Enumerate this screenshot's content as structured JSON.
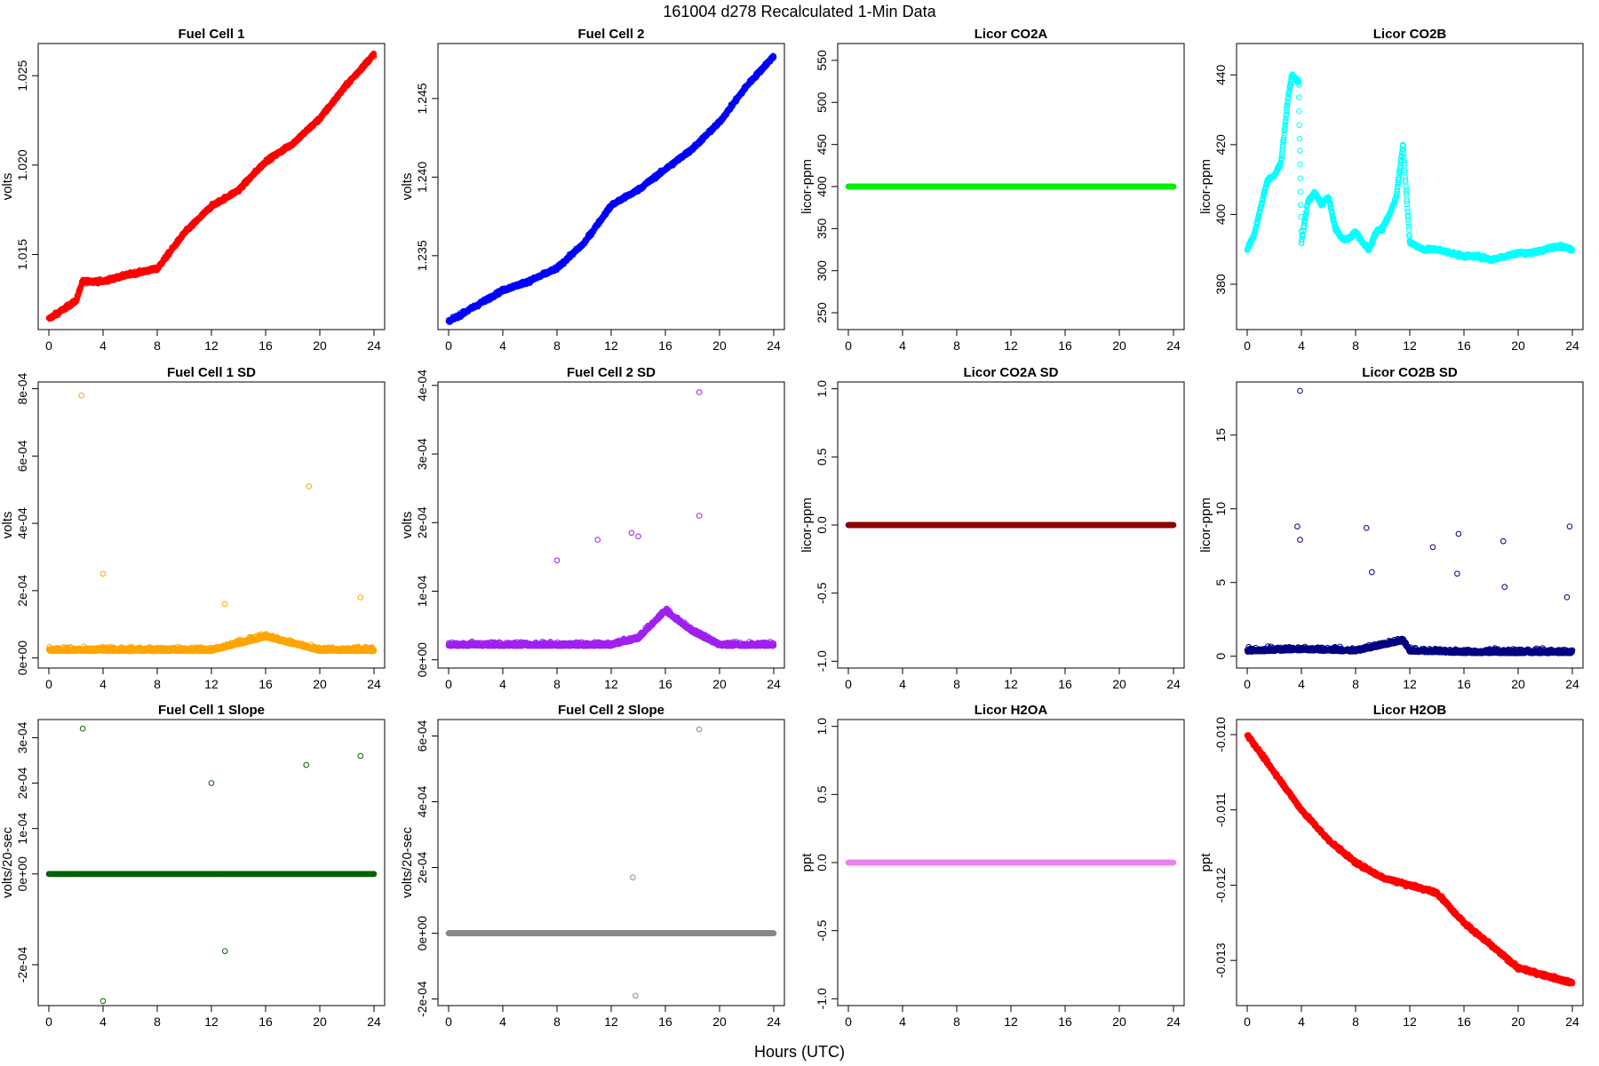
{
  "figure": {
    "title": "161004   d278   Recalculated 1-Min Data",
    "xlabel": "Hours (UTC)"
  },
  "chart_data": [
    {
      "type": "scatter",
      "title": "Fuel Cell 1",
      "ylabel": "volts",
      "color": "#ff0000",
      "xlim": [
        0,
        24
      ],
      "ylim": [
        1.0108,
        1.0268
      ],
      "xticks": [
        0,
        4,
        8,
        12,
        16,
        20,
        24
      ],
      "yticks": [
        1.015,
        1.02,
        1.025
      ],
      "ytick_labels": [
        "1.015",
        "1.020",
        "1.025"
      ],
      "series": [
        {
          "x": [
            0,
            2,
            2.5,
            4,
            6,
            8,
            10,
            12,
            14,
            16,
            18,
            20,
            22,
            24
          ],
          "y": [
            1.0114,
            1.0124,
            1.0135,
            1.0135,
            1.0139,
            1.0142,
            1.0162,
            1.0177,
            1.0186,
            1.0202,
            1.0212,
            1.0226,
            1.0245,
            1.0262
          ]
        }
      ]
    },
    {
      "type": "scatter",
      "title": "Fuel Cell 2",
      "ylabel": "volts",
      "color": "#0000ff",
      "xlim": [
        0,
        24
      ],
      "ylim": [
        1.2303,
        1.2485
      ],
      "xticks": [
        0,
        4,
        8,
        12,
        16,
        20,
        24
      ],
      "yticks": [
        1.235,
        1.24,
        1.245
      ],
      "ytick_labels": [
        "1.235",
        "1.240",
        "1.245"
      ],
      "series": [
        {
          "x": [
            0,
            2,
            4,
            6,
            8,
            10,
            12,
            14,
            16,
            18,
            20,
            22,
            24
          ],
          "y": [
            1.2308,
            1.2318,
            1.2328,
            1.2334,
            1.2342,
            1.2358,
            1.2382,
            1.2392,
            1.2405,
            1.2418,
            1.2435,
            1.2458,
            1.2477
          ]
        }
      ]
    },
    {
      "type": "scatter",
      "title": "Licor CO2A",
      "ylabel": "licor-ppm",
      "color": "#00ee00",
      "xlim": [
        0,
        24
      ],
      "ylim": [
        230,
        570
      ],
      "xticks": [
        0,
        4,
        8,
        12,
        16,
        20,
        24
      ],
      "yticks": [
        250,
        300,
        350,
        400,
        450,
        500,
        550
      ],
      "ytick_labels": [
        "250",
        "300",
        "350",
        "400",
        "450",
        "500",
        "550"
      ],
      "series": [
        {
          "x": [
            0,
            24
          ],
          "y": [
            400,
            400
          ]
        }
      ]
    },
    {
      "type": "scatter",
      "title": "Licor CO2B",
      "ylabel": "licor-ppm",
      "color": "#00ffff",
      "xlim": [
        0,
        24
      ],
      "ylim": [
        367,
        449
      ],
      "xticks": [
        0,
        4,
        8,
        12,
        16,
        20,
        24
      ],
      "yticks": [
        380,
        400,
        420,
        440
      ],
      "ytick_labels": [
        "380",
        "400",
        "420",
        "440"
      ],
      "series": [
        {
          "x": [
            0,
            0.5,
            1,
            1.5,
            2,
            2.5,
            3,
            3.3,
            3.8,
            4,
            4.5,
            5,
            5.5,
            6,
            6.5,
            7,
            7.5,
            8,
            8.5,
            9,
            9.5,
            10,
            10.5,
            11,
            11.5,
            12,
            13,
            14,
            15,
            16,
            17,
            18,
            19,
            20,
            21,
            22,
            23,
            24
          ],
          "y": [
            390,
            394,
            402,
            410,
            411,
            415,
            433,
            440,
            438,
            392,
            404,
            406,
            403,
            405,
            396,
            393,
            393,
            395,
            392,
            390,
            395,
            396,
            400,
            405,
            420,
            392,
            390,
            390,
            389,
            388,
            388,
            387,
            388,
            389,
            389,
            390,
            391,
            390
          ]
        }
      ]
    },
    {
      "type": "scatter",
      "title": "Fuel Cell 1 SD",
      "ylabel": "volts",
      "color": "#ffa500",
      "xlim": [
        0,
        24
      ],
      "ylim": [
        -3e-05,
        0.00082
      ],
      "xticks": [
        0,
        4,
        8,
        12,
        16,
        20,
        24
      ],
      "yticks": [
        0,
        0.0002,
        0.0004,
        0.0006,
        0.0008
      ],
      "ytick_labels": [
        "0e+00",
        "2e-04",
        "4e-04",
        "6e-04",
        "8e-04"
      ],
      "series": [
        {
          "x": [
            0,
            4,
            8,
            12,
            16,
            18,
            20,
            24
          ],
          "y": [
            2e-05,
            2e-05,
            2e-05,
            2e-05,
            6e-05,
            4e-05,
            2e-05,
            2e-05
          ]
        }
      ],
      "outliers": [
        [
          2.4,
          0.00078
        ],
        [
          19.2,
          0.00051
        ],
        [
          4,
          0.00025
        ],
        [
          23,
          0.00018
        ],
        [
          13,
          0.00016
        ]
      ]
    },
    {
      "type": "scatter",
      "title": "Fuel Cell 2 SD",
      "ylabel": "volts",
      "color": "#a020f0",
      "xlim": [
        0,
        24
      ],
      "ylim": [
        -1.2e-05,
        0.000405
      ],
      "xticks": [
        0,
        4,
        8,
        12,
        16,
        20,
        24
      ],
      "yticks": [
        0,
        0.0001,
        0.0002,
        0.0003,
        0.0004
      ],
      "ytick_labels": [
        "0e+00",
        "1e-04",
        "2e-04",
        "3e-04",
        "4e-04"
      ],
      "series": [
        {
          "x": [
            0,
            4,
            8,
            12,
            14,
            16,
            18,
            20,
            24
          ],
          "y": [
            2e-05,
            2e-05,
            2e-05,
            2e-05,
            3e-05,
            7e-05,
            4e-05,
            2e-05,
            2e-05
          ]
        }
      ],
      "outliers": [
        [
          18.5,
          0.00039
        ],
        [
          18.5,
          0.00021
        ],
        [
          13.5,
          0.000185
        ],
        [
          14,
          0.00018
        ],
        [
          11,
          0.000175
        ],
        [
          8,
          0.000145
        ]
      ]
    },
    {
      "type": "scatter",
      "title": "Licor CO2A SD",
      "ylabel": "licor-ppm",
      "color": "#8b0000",
      "xlim": [
        0,
        24
      ],
      "ylim": [
        -1.05,
        1.05
      ],
      "xticks": [
        0,
        4,
        8,
        12,
        16,
        20,
        24
      ],
      "yticks": [
        -1,
        -0.5,
        0,
        0.5,
        1
      ],
      "ytick_labels": [
        "-1.0",
        "-0.5",
        "0.0",
        "0.5",
        "1.0"
      ],
      "series": [
        {
          "x": [
            0,
            24
          ],
          "y": [
            0,
            0
          ]
        }
      ]
    },
    {
      "type": "scatter",
      "title": "Licor CO2B SD",
      "ylabel": "licor-ppm",
      "color": "#000080",
      "xlim": [
        0,
        24
      ],
      "ylim": [
        -0.8,
        18.6
      ],
      "xticks": [
        0,
        4,
        8,
        12,
        16,
        20,
        24
      ],
      "yticks": [
        0,
        5,
        10,
        15
      ],
      "ytick_labels": [
        "0",
        "5",
        "10",
        "15"
      ],
      "series": [
        {
          "x": [
            0,
            4,
            8,
            11.5,
            12,
            16,
            20,
            24
          ],
          "y": [
            0.3,
            0.4,
            0.3,
            1.0,
            0.3,
            0.2,
            0.2,
            0.2
          ]
        }
      ],
      "outliers": [
        [
          3.9,
          18
        ],
        [
          3.7,
          8.8
        ],
        [
          3.9,
          7.9
        ],
        [
          8.8,
          8.7
        ],
        [
          15.6,
          8.3
        ],
        [
          23.8,
          8.8
        ],
        [
          18.9,
          7.8
        ],
        [
          13.7,
          7.4
        ],
        [
          9.2,
          5.7
        ],
        [
          15.5,
          5.6
        ],
        [
          19,
          4.7
        ],
        [
          23.6,
          4
        ]
      ]
    },
    {
      "type": "scatter",
      "title": "Fuel Cell 1 Slope",
      "ylabel": "volts/20-sec",
      "color": "#006400",
      "xlim": [
        0,
        24
      ],
      "ylim": [
        -0.00029,
        0.00034
      ],
      "xticks": [
        0,
        4,
        8,
        12,
        16,
        20,
        24
      ],
      "yticks": [
        -0.0002,
        0,
        0.0002
      ],
      "ytick_labels": [
        "-2e-04",
        "0e+00",
        "2e-04"
      ],
      "extra_yticks": [
        0.0001,
        0.0003
      ],
      "extra_ytick_labels": [
        "1e-04",
        "3e-04"
      ],
      "series": [
        {
          "x": [
            0,
            24
          ],
          "y": [
            0,
            0
          ]
        }
      ],
      "spread": 6e-05,
      "outliers": [
        [
          2.5,
          0.00032
        ],
        [
          4,
          -0.00028
        ],
        [
          12,
          0.0002
        ],
        [
          19,
          0.00024
        ],
        [
          23,
          0.00026
        ],
        [
          13,
          -0.00017
        ]
      ]
    },
    {
      "type": "scatter",
      "title": "Fuel Cell 2 Slope",
      "ylabel": "volts/20-sec",
      "color": "#888888",
      "xlim": [
        0,
        24
      ],
      "ylim": [
        -0.00022,
        0.00065
      ],
      "xticks": [
        0,
        4,
        8,
        12,
        16,
        20,
        24
      ],
      "yticks": [
        -0.0002,
        0,
        0.0002,
        0.0004,
        0.0006
      ],
      "ytick_labels": [
        "-2e-04",
        "0e+00",
        "2e-04",
        "4e-04",
        "6e-04"
      ],
      "series": [
        {
          "x": [
            0,
            24
          ],
          "y": [
            0,
            0
          ]
        }
      ],
      "spread": 4e-05,
      "outliers": [
        [
          18.5,
          0.00062
        ],
        [
          13.8,
          -0.00019
        ],
        [
          13.6,
          0.00017
        ]
      ]
    },
    {
      "type": "scatter",
      "title": "Licor H2OA",
      "ylabel": "ppt",
      "color": "#ee82ee",
      "xlim": [
        0,
        24
      ],
      "ylim": [
        -1.05,
        1.05
      ],
      "xticks": [
        0,
        4,
        8,
        12,
        16,
        20,
        24
      ],
      "yticks": [
        -1,
        -0.5,
        0,
        0.5,
        1
      ],
      "ytick_labels": [
        "-1.0",
        "-0.5",
        "0.0",
        "0.5",
        "1.0"
      ],
      "series": [
        {
          "x": [
            0,
            24
          ],
          "y": [
            0,
            0
          ]
        }
      ]
    },
    {
      "type": "scatter",
      "title": "Licor H2OB",
      "ylabel": "ppt",
      "color": "#ff0000",
      "xlim": [
        0,
        24
      ],
      "ylim": [
        -0.0136,
        -0.0098
      ],
      "xticks": [
        0,
        4,
        8,
        12,
        16,
        20,
        24
      ],
      "yticks": [
        -0.013,
        -0.012,
        -0.011,
        -0.01
      ],
      "ytick_labels": [
        "-0.013",
        "-0.012",
        "-0.011",
        "-0.010"
      ],
      "series": [
        {
          "x": [
            0,
            2,
            4,
            6,
            8,
            10,
            12,
            14,
            16,
            18,
            20,
            22,
            24
          ],
          "y": [
            -0.01,
            -0.0105,
            -0.011,
            -0.0114,
            -0.0117,
            -0.0119,
            -0.012,
            -0.0121,
            -0.0125,
            -0.0128,
            -0.0131,
            -0.0132,
            -0.0133
          ]
        }
      ]
    }
  ]
}
